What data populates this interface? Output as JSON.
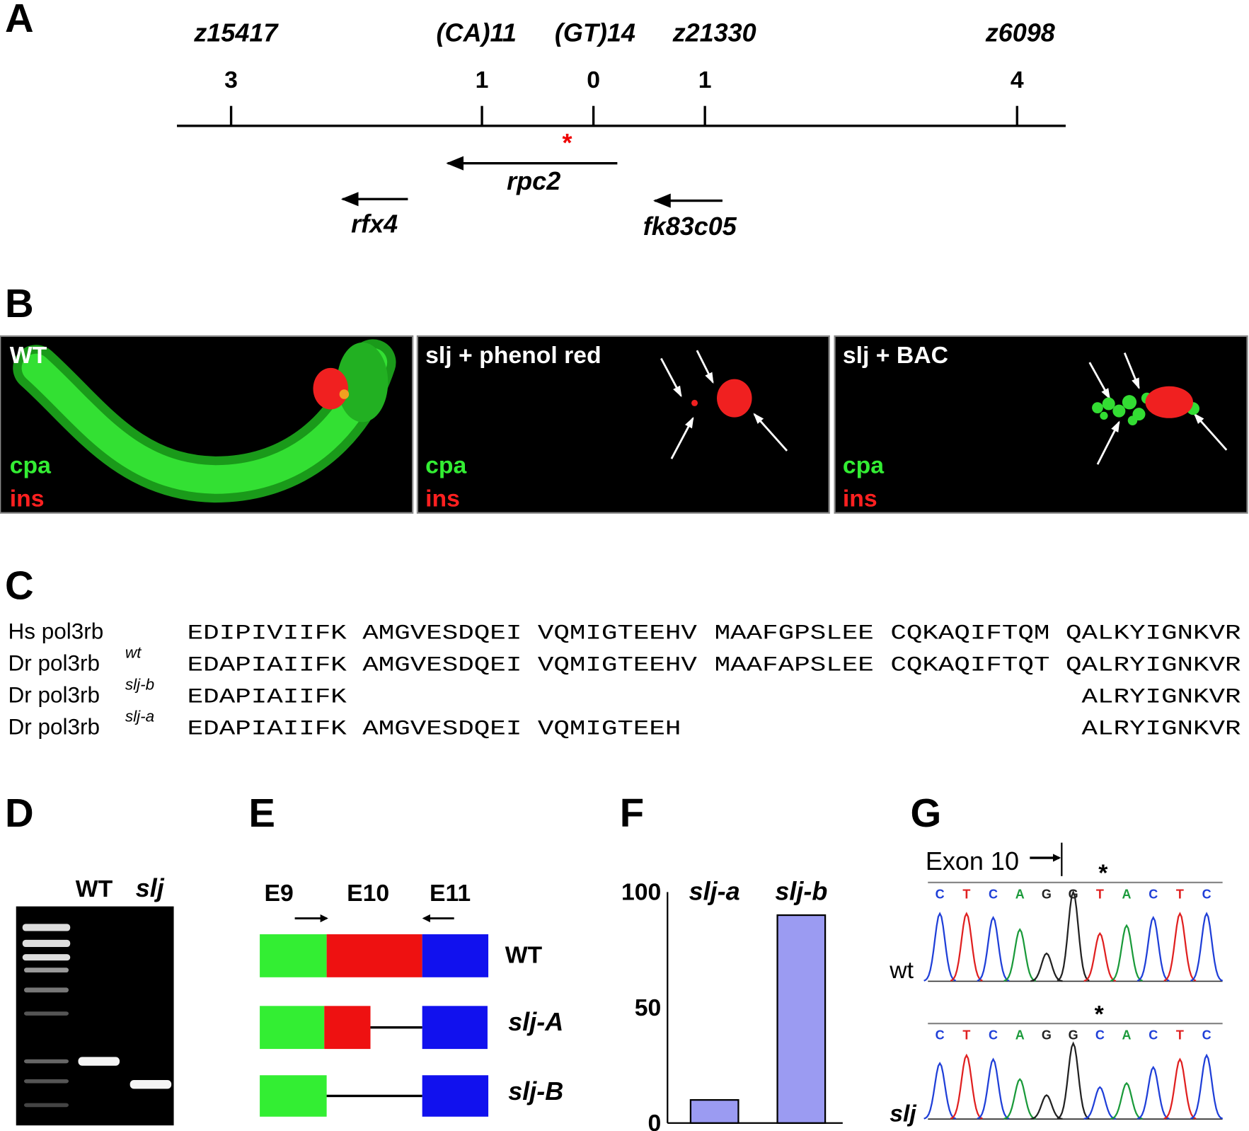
{
  "panel_labels": [
    "A",
    "B",
    "C",
    "D",
    "E",
    "F",
    "G"
  ],
  "map": {
    "markers": [
      {
        "name": "z15417",
        "distance": 3
      },
      {
        "name": "(CA)11",
        "distance": 1
      },
      {
        "name": "(GT)14",
        "distance": 0
      },
      {
        "name": "z21330",
        "distance": 1
      },
      {
        "name": "z6098",
        "distance": 4
      }
    ],
    "mutation_mark": "*",
    "genes": [
      "rpc2",
      "rfx4",
      "fk83c05"
    ]
  },
  "images": [
    {
      "title": "WT",
      "channels": [
        "cpa",
        "ins"
      ]
    },
    {
      "title": "slj + phenol red",
      "channels": [
        "cpa",
        "ins"
      ]
    },
    {
      "title": "slj + BAC",
      "channels": [
        "cpa",
        "ins"
      ]
    }
  ],
  "alignment": {
    "rows": [
      {
        "name": "Hs pol3rb",
        "blocks": [
          "EDIPIVIIFK",
          "AMGVESDQEI",
          "VQMIGTEEHV",
          "MAAFGPSLEE",
          "CQKAQIFTQM",
          "QALKYIGNKVR"
        ]
      },
      {
        "name": "Dr pol3rb",
        "superscript": "wt",
        "blocks": [
          "EDAPIAIIFK",
          "AMGVESDQEI",
          "VQMIGTEEHV",
          "MAAFAPSLEE",
          "CQKAQIFTQT",
          "QALRYIGNKVR"
        ]
      },
      {
        "name": "Dr pol3rb",
        "superscript": "slj-b",
        "blocks": [
          "EDAPIAIIFK",
          null,
          null,
          null,
          null,
          "ALRYIGNKVR"
        ]
      },
      {
        "name": "Dr pol3rb",
        "superscript": "slj-a",
        "blocks": [
          "EDAPIAIIFK",
          "AMGVESDQEI",
          "VQMIGTEEH",
          null,
          null,
          "ALRYIGNKVR"
        ]
      }
    ]
  },
  "gel": {
    "lanes": [
      "WT",
      "slj"
    ]
  },
  "splicing": {
    "exons": [
      "E9",
      "E10",
      "E11"
    ],
    "transcripts": [
      "WT",
      "slj-A",
      "slj-B"
    ]
  },
  "chart_data": {
    "type": "bar",
    "categories": [
      "slj-a",
      "slj-b"
    ],
    "values": [
      10,
      90
    ],
    "color": "#9b9bf2",
    "ylim": [
      0,
      100
    ],
    "yticks": [
      0,
      50,
      100
    ]
  },
  "chromatogram": {
    "exon_label": "Exon 10",
    "traces": [
      {
        "label": "wt",
        "mark": "*",
        "bases": [
          "C",
          "T",
          "C",
          "A",
          "G",
          "G",
          "T",
          "A",
          "C",
          "T",
          "C"
        ]
      },
      {
        "label": "slj",
        "mark": "*",
        "bases": [
          "C",
          "T",
          "C",
          "A",
          "G",
          "G",
          "C",
          "A",
          "C",
          "T",
          "C"
        ]
      }
    ]
  }
}
